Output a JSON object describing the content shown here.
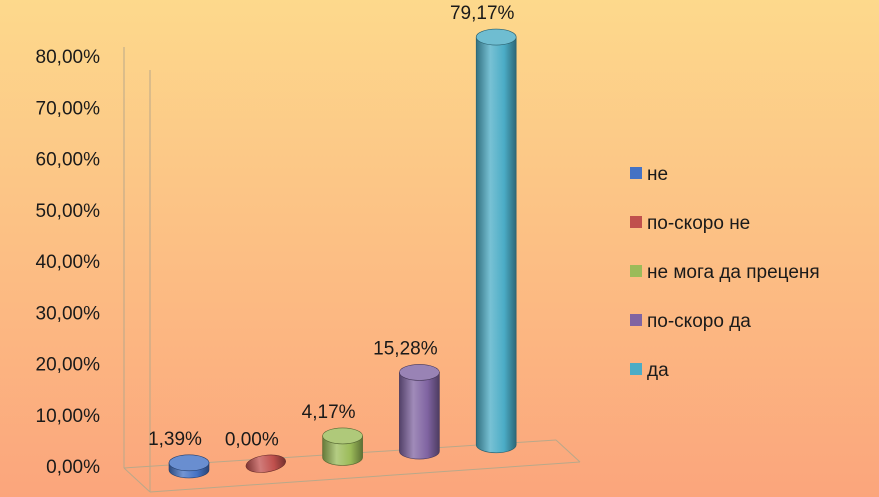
{
  "chart_data": {
    "type": "bar",
    "categories": [
      "не",
      "по-скоро не",
      "не мога да преценя",
      "по-скоро да",
      "да"
    ],
    "values": [
      1.39,
      0.0,
      4.17,
      15.28,
      79.17
    ],
    "data_labels": [
      "1,39%",
      "0,00%",
      "4,17%",
      "15,28%",
      "79,17%"
    ],
    "ylim": [
      0,
      80
    ],
    "yticks": [
      0,
      10,
      20,
      30,
      40,
      50,
      60,
      70,
      80
    ],
    "ytick_labels": [
      "0,00%",
      "10,00%",
      "20,00%",
      "30,00%",
      "40,00%",
      "50,00%",
      "60,00%",
      "70,00%",
      "80,00%"
    ],
    "title": "",
    "xlabel": "",
    "ylabel": "",
    "grid": false,
    "legend": "right",
    "shape": "cylinder-3d",
    "colors": [
      "#4472c4",
      "#c0504d",
      "#9bbb59",
      "#8064a2",
      "#4bacc6"
    ],
    "background": {
      "top": "#fdd98c",
      "bottom": "#fba57c"
    }
  }
}
